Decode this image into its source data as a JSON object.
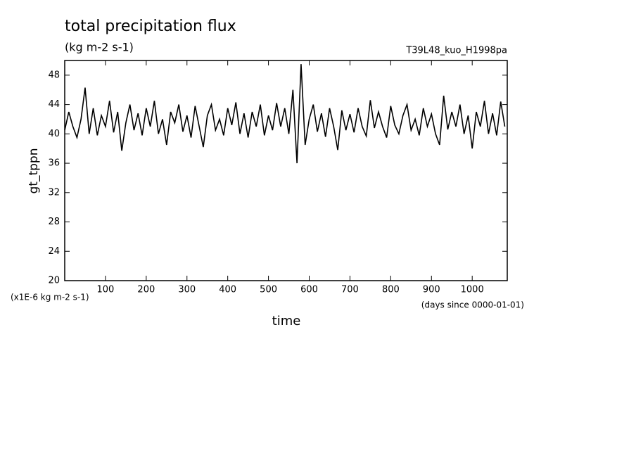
{
  "chart_data": {
    "type": "line",
    "title": "total precipitation flux",
    "subtitle": "(kg m-2 s-1)",
    "run_label": "T39L48_kuo_H1998pa",
    "y_label": "gt_tppn",
    "x_label": "time",
    "y_unit": "(x1E-6 kg m-2 s-1)",
    "x_unit": "(days since 0000-01-01)",
    "xlim": [
      0,
      1086
    ],
    "ylim": [
      20,
      50
    ],
    "xticks": [
      100,
      200,
      300,
      400,
      500,
      600,
      700,
      800,
      900,
      1000
    ],
    "yticks": [
      20,
      24,
      28,
      32,
      36,
      40,
      44,
      48
    ],
    "color": "#000000",
    "x": [
      0,
      10,
      20,
      30,
      40,
      50,
      60,
      70,
      80,
      90,
      100,
      110,
      120,
      130,
      140,
      150,
      160,
      170,
      180,
      190,
      200,
      210,
      220,
      230,
      240,
      250,
      260,
      270,
      280,
      290,
      300,
      310,
      320,
      330,
      340,
      350,
      360,
      370,
      380,
      390,
      400,
      410,
      420,
      430,
      440,
      450,
      460,
      470,
      480,
      490,
      500,
      510,
      520,
      530,
      540,
      550,
      560,
      570,
      580,
      590,
      600,
      610,
      620,
      630,
      640,
      650,
      660,
      670,
      680,
      690,
      700,
      710,
      720,
      730,
      740,
      750,
      760,
      770,
      780,
      790,
      800,
      810,
      820,
      830,
      840,
      850,
      860,
      870,
      880,
      890,
      900,
      910,
      920,
      930,
      940,
      950,
      960,
      970,
      980,
      990,
      1000,
      1010,
      1020,
      1030,
      1040,
      1050,
      1060,
      1070,
      1080
    ],
    "values": [
      40.5,
      43,
      41,
      39.5,
      42,
      46.3,
      40,
      43.5,
      39.8,
      42.5,
      41,
      44.5,
      40.2,
      43,
      37.7,
      41.5,
      44,
      40.5,
      42.8,
      39.8,
      43.5,
      41,
      44.5,
      40,
      42,
      38.5,
      43,
      41.5,
      44,
      40.3,
      42.5,
      39.5,
      43.8,
      41,
      38.2,
      42.5,
      44,
      40.5,
      42,
      39.8,
      43.5,
      41.2,
      44.3,
      40,
      42.8,
      39.5,
      43,
      41,
      44,
      39.8,
      42.5,
      40.5,
      44.2,
      41,
      43.5,
      40,
      46,
      36,
      49.5,
      38.5,
      42,
      44,
      40.3,
      42.8,
      39.6,
      43.5,
      41,
      37.8,
      43.2,
      40.5,
      42.7,
      40.2,
      43.5,
      41,
      39.7,
      44.6,
      40.8,
      43,
      41,
      39.5,
      43.8,
      41.2,
      40,
      42.5,
      44,
      40.5,
      42,
      39.8,
      43.5,
      41,
      42.7,
      40,
      38.5,
      45.2,
      40.6,
      43,
      41,
      44,
      40,
      42.5,
      38,
      43,
      41,
      44.5,
      40,
      42.8,
      39.8,
      44.4,
      41
    ]
  }
}
